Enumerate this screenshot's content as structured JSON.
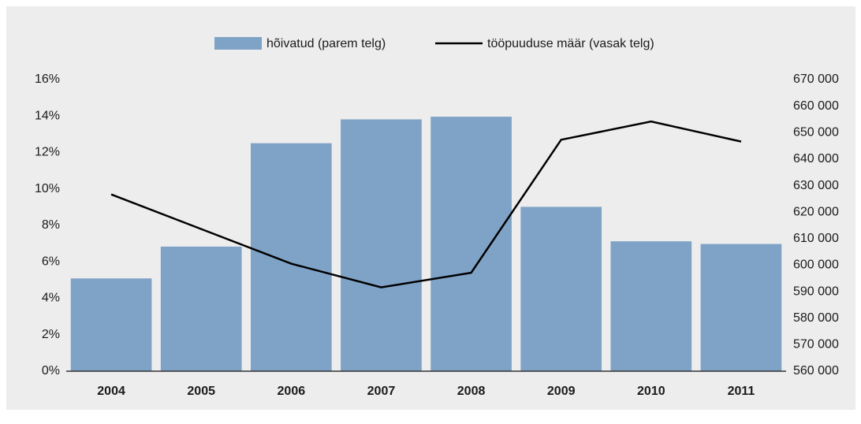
{
  "chart_data": {
    "type": "bar_line",
    "categories": [
      "2004",
      "2005",
      "2006",
      "2007",
      "2008",
      "2009",
      "2010",
      "2011"
    ],
    "series": [
      {
        "name": "hõivatud (parem telg)",
        "type": "bar",
        "axis": "y2",
        "color": "#7fa3c6",
        "values": [
          595000,
          607000,
          646000,
          655000,
          656000,
          622000,
          609000,
          608000
        ]
      },
      {
        "name": "tööpuuduse määr (vasak telg)",
        "type": "line",
        "axis": "y",
        "color": "#000000",
        "values": [
          9.7,
          7.8,
          5.9,
          4.6,
          5.4,
          12.7,
          13.7,
          12.6
        ]
      }
    ],
    "ylim": [
      0,
      16
    ],
    "yticks": [
      {
        "value": 0,
        "label": "0%"
      },
      {
        "value": 2,
        "label": "2%"
      },
      {
        "value": 4,
        "label": "4%"
      },
      {
        "value": 6,
        "label": "6%"
      },
      {
        "value": 8,
        "label": "8%"
      },
      {
        "value": 10,
        "label": "10%"
      },
      {
        "value": 12,
        "label": "12%"
      },
      {
        "value": 14,
        "label": "14%"
      },
      {
        "value": 16,
        "label": "16%"
      }
    ],
    "y2lim": [
      560000,
      670000
    ],
    "y2ticks": [
      {
        "value": 560000,
        "label": "560 000"
      },
      {
        "value": 570000,
        "label": "570 000"
      },
      {
        "value": 580000,
        "label": "580 000"
      },
      {
        "value": 590000,
        "label": "590 000"
      },
      {
        "value": 600000,
        "label": "600 000"
      },
      {
        "value": 610000,
        "label": "610 000"
      },
      {
        "value": 620000,
        "label": "620 000"
      },
      {
        "value": 630000,
        "label": "630 000"
      },
      {
        "value": 640000,
        "label": "640 000"
      },
      {
        "value": 650000,
        "label": "650 000"
      },
      {
        "value": 660000,
        "label": "660 000"
      },
      {
        "value": 670000,
        "label": "670 000"
      }
    ],
    "legend": "top",
    "grid": false
  }
}
